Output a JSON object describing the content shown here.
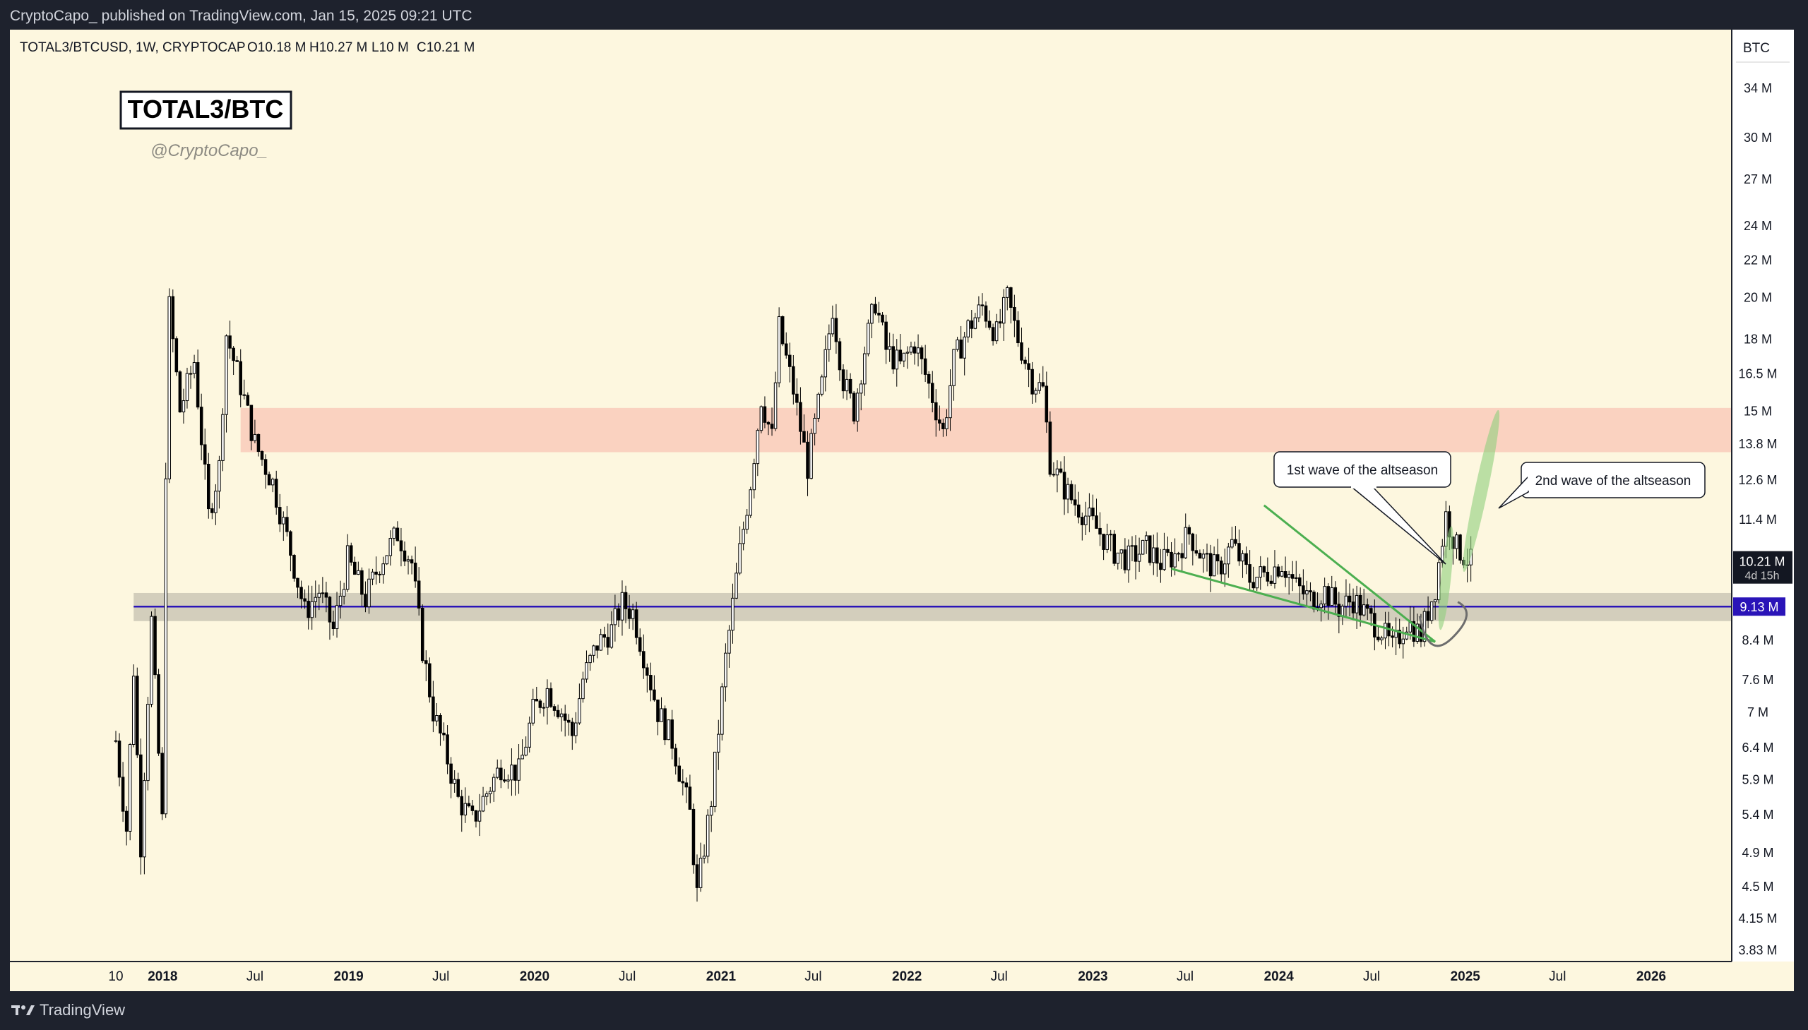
{
  "publish_line": "CryptoCapo_ published on TradingView.com, Jan 15, 2025 09:21 UTC",
  "symbol_line": "TOTAL3/BTCUSD, 1W, CRYPTOCAP",
  "ohlc": {
    "open": "O10.18 M",
    "high": "H10.27 M",
    "low": "L10 M",
    "close": "C10.21 M"
  },
  "title_box": "TOTAL3/BTC",
  "author": "@CryptoCapo_",
  "price_axis_currency": "BTC",
  "footer_brand": "TradingView",
  "colors": {
    "background": "#fdf7df",
    "candle": "#000000",
    "resistance_zone": "#f8c5b5",
    "support_zone": "#c8c3b3",
    "support_line": "#2a14b8",
    "trendline": "#4caf50",
    "wave_highlight": "#8fcf7d",
    "label_dark": "#131722",
    "label_blue": "#2a14b8"
  },
  "chart_data": {
    "type": "candlestick",
    "symbol": "TOTAL3/BTCUSD",
    "interval": "1W",
    "y_scale": "log",
    "y_unit": "BTC",
    "ylim": [
      3.83,
      37.5
    ],
    "xlim": [
      "2017-10-01",
      "2026-10-01"
    ],
    "y_ticks": [
      "34 M",
      "30 M",
      "27 M",
      "24 M",
      "22 M",
      "20 M",
      "18 M",
      "16.5 M",
      "15 M",
      "13.8 M",
      "12.6 M",
      "11.4 M",
      "10.21 M",
      "9.13 M",
      "8.4 M",
      "7.6 M",
      "7 M",
      "6.4 M",
      "5.9 M",
      "5.4 M",
      "4.9 M",
      "4.5 M",
      "4.15 M",
      "3.83 M"
    ],
    "x_ticks": [
      {
        "label": "10",
        "date": "2017-10-01",
        "bold": false
      },
      {
        "label": "2018",
        "date": "2018-01-01",
        "bold": true
      },
      {
        "label": "Jul",
        "date": "2018-07-01",
        "bold": false
      },
      {
        "label": "2019",
        "date": "2019-01-01",
        "bold": true
      },
      {
        "label": "Jul",
        "date": "2019-07-01",
        "bold": false
      },
      {
        "label": "2020",
        "date": "2020-01-01",
        "bold": true
      },
      {
        "label": "Jul",
        "date": "2020-07-01",
        "bold": false
      },
      {
        "label": "2021",
        "date": "2021-01-01",
        "bold": true
      },
      {
        "label": "Jul",
        "date": "2021-07-01",
        "bold": false
      },
      {
        "label": "2022",
        "date": "2022-01-01",
        "bold": true
      },
      {
        "label": "Jul",
        "date": "2022-07-01",
        "bold": false
      },
      {
        "label": "2023",
        "date": "2023-01-01",
        "bold": true
      },
      {
        "label": "Jul",
        "date": "2023-07-01",
        "bold": false
      },
      {
        "label": "2024",
        "date": "2024-01-01",
        "bold": true
      },
      {
        "label": "Jul",
        "date": "2024-07-01",
        "bold": false
      },
      {
        "label": "2025",
        "date": "2025-01-01",
        "bold": true
      },
      {
        "label": "Jul",
        "date": "2025-07-01",
        "bold": false
      },
      {
        "label": "2026",
        "date": "2026-01-01",
        "bold": true
      }
    ],
    "close_path": [
      [
        "2017-10-01",
        6.5
      ],
      [
        "2017-10-22",
        5.2
      ],
      [
        "2017-11-05",
        7.8
      ],
      [
        "2017-11-19",
        5.0
      ],
      [
        "2017-12-10",
        8.8
      ],
      [
        "2017-12-31",
        5.3
      ],
      [
        "2018-01-07",
        13.0
      ],
      [
        "2018-01-14",
        19.5
      ],
      [
        "2018-02-04",
        15.0
      ],
      [
        "2018-03-04",
        17.0
      ],
      [
        "2018-04-01",
        11.5
      ],
      [
        "2018-04-22",
        13.0
      ],
      [
        "2018-05-06",
        18.2
      ],
      [
        "2018-06-03",
        16.0
      ],
      [
        "2018-07-01",
        13.8
      ],
      [
        "2018-08-05",
        12.5
      ],
      [
        "2018-09-09",
        10.5
      ],
      [
        "2018-10-07",
        9.0
      ],
      [
        "2018-11-04",
        9.5
      ],
      [
        "2018-12-02",
        8.6
      ],
      [
        "2018-12-30",
        10.3
      ],
      [
        "2019-02-03",
        9.3
      ],
      [
        "2019-03-03",
        10.2
      ],
      [
        "2019-04-07",
        11.0
      ],
      [
        "2019-05-05",
        10.2
      ],
      [
        "2019-05-26",
        8.2
      ],
      [
        "2019-06-16",
        7.0
      ],
      [
        "2019-07-14",
        6.2
      ],
      [
        "2019-08-04",
        5.6
      ],
      [
        "2019-09-01",
        5.3
      ],
      [
        "2019-09-22",
        5.6
      ],
      [
        "2019-10-27",
        6.1
      ],
      [
        "2019-12-01",
        6.0
      ],
      [
        "2019-12-29",
        7.0
      ],
      [
        "2020-01-26",
        7.4
      ],
      [
        "2020-02-23",
        7.0
      ],
      [
        "2020-03-15",
        6.6
      ],
      [
        "2020-04-05",
        7.6
      ],
      [
        "2020-05-03",
        8.3
      ],
      [
        "2020-05-31",
        8.6
      ],
      [
        "2020-06-21",
        9.2
      ],
      [
        "2020-07-12",
        9.0
      ],
      [
        "2020-08-02",
        8.1
      ],
      [
        "2020-08-30",
        7.0
      ],
      [
        "2020-09-27",
        6.5
      ],
      [
        "2020-11-01",
        5.4
      ],
      [
        "2020-11-15",
        4.4
      ],
      [
        "2020-12-13",
        5.6
      ],
      [
        "2021-01-10",
        8.0
      ],
      [
        "2021-02-07",
        10.5
      ],
      [
        "2021-02-28",
        12.5
      ],
      [
        "2021-03-21",
        15.5
      ],
      [
        "2021-04-11",
        14.0
      ],
      [
        "2021-04-25",
        18.5
      ],
      [
        "2021-05-23",
        15.8
      ],
      [
        "2021-06-20",
        13.0
      ],
      [
        "2021-07-18",
        16.0
      ],
      [
        "2021-08-08",
        19.5
      ],
      [
        "2021-08-29",
        16.2
      ],
      [
        "2021-09-19",
        15.0
      ],
      [
        "2021-10-10",
        17.5
      ],
      [
        "2021-10-31",
        19.8
      ],
      [
        "2021-11-21",
        17.5
      ],
      [
        "2021-12-19",
        16.8
      ],
      [
        "2022-01-16",
        17.8
      ],
      [
        "2022-02-13",
        16.0
      ],
      [
        "2022-03-13",
        14.2
      ],
      [
        "2022-04-03",
        17.0
      ],
      [
        "2022-05-01",
        18.5
      ],
      [
        "2022-05-29",
        19.5
      ],
      [
        "2022-06-26",
        18.2
      ],
      [
        "2022-07-17",
        19.9
      ],
      [
        "2022-08-07",
        18.0
      ],
      [
        "2022-09-04",
        16.2
      ],
      [
        "2022-09-25",
        15.8
      ],
      [
        "2022-10-09",
        13.2
      ],
      [
        "2022-10-30",
        12.5
      ],
      [
        "2022-11-20",
        12.0
      ],
      [
        "2022-12-18",
        11.5
      ],
      [
        "2023-01-15",
        11.0
      ],
      [
        "2023-02-12",
        10.5
      ],
      [
        "2023-03-12",
        10.3
      ],
      [
        "2023-04-16",
        10.6
      ],
      [
        "2023-05-14",
        10.2
      ],
      [
        "2023-06-11",
        10.4
      ],
      [
        "2023-07-09",
        11.0
      ],
      [
        "2023-08-06",
        10.3
      ],
      [
        "2023-09-03",
        10.0
      ],
      [
        "2023-10-01",
        10.7
      ],
      [
        "2023-11-05",
        9.8
      ],
      [
        "2023-12-03",
        9.9
      ],
      [
        "2024-01-07",
        10.2
      ],
      [
        "2024-02-04",
        9.6
      ],
      [
        "2024-03-03",
        9.3
      ],
      [
        "2024-03-31",
        9.5
      ],
      [
        "2024-04-28",
        9.1
      ],
      [
        "2024-05-26",
        9.3
      ],
      [
        "2024-06-23",
        8.9
      ],
      [
        "2024-07-21",
        8.6
      ],
      [
        "2024-08-11",
        8.2
      ],
      [
        "2024-09-08",
        8.8
      ],
      [
        "2024-10-06",
        8.5
      ],
      [
        "2024-11-03",
        9.6
      ],
      [
        "2024-11-24",
        11.5
      ],
      [
        "2024-12-15",
        10.6
      ],
      [
        "2025-01-12",
        10.21
      ]
    ],
    "zones": [
      {
        "name": "resistance",
        "from": "2018-06-03",
        "to": "2026-10-01",
        "y_low": 13.5,
        "y_high": 15.1
      },
      {
        "name": "support",
        "from": "2017-11-05",
        "to": "2026-10-01",
        "y_low": 8.8,
        "y_high": 9.45
      }
    ],
    "support_level": 9.13,
    "last_close": "10.21 M",
    "countdown": "4d 15h",
    "support_label": "9.13 M",
    "annotations": [
      {
        "text": "1st wave of the altseason",
        "anchor_date": "2024-10-13",
        "anchor_y": 10.5
      },
      {
        "text": "2nd wave of the altseason",
        "anchor_date": "2025-02-09",
        "anchor_y": 11.0
      }
    ],
    "trendlines": [
      {
        "name": "falling-wedge-lower",
        "from": [
          "2023-06-04",
          10.05
        ],
        "to": [
          "2024-11-03",
          8.35
        ]
      },
      {
        "name": "falling-wedge-upper",
        "from": [
          "2023-12-03",
          11.8
        ],
        "to": [
          "2024-11-03",
          8.35
        ]
      }
    ],
    "wave_ellipses": [
      {
        "name": "first-wave",
        "center_date": "2024-11-24",
        "center_y": 9.9,
        "rx_weeks": 1.4,
        "ry": [
          8.6,
          11.2
        ]
      },
      {
        "name": "second-wave",
        "center_date": "2025-01-05",
        "center_y": 12.2,
        "rx_weeks": 1.8,
        "ry": [
          10.0,
          15.2
        ]
      }
    ]
  }
}
